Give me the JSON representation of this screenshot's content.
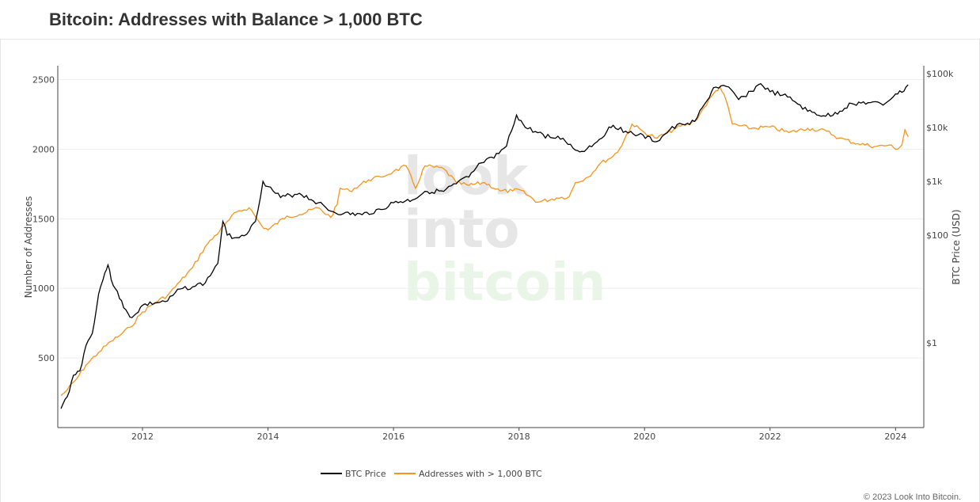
{
  "header": {
    "title": "Bitcoin: Addresses with Balance > 1,000 BTC"
  },
  "watermark": {
    "line1": "look",
    "line2": "into",
    "line3": "bitcoin"
  },
  "footer": {
    "copyright": "© 2023 Look Into Bitcoin."
  },
  "chart_data": {
    "type": "line",
    "title": "Bitcoin: Addresses with Balance > 1,000 BTC",
    "xlabel": "",
    "ylabel": "Number of Addresses",
    "y2label": "BTC Price (USD)",
    "xlim": [
      2010.65,
      2024.45
    ],
    "ylim": [
      0,
      2600
    ],
    "y2_scale": "log",
    "x_ticks": [
      "2012",
      "2014",
      "2016",
      "2018",
      "2020",
      "2022",
      "2024"
    ],
    "y_ticks": [
      "500",
      "1000",
      "1500",
      "2000",
      "2500"
    ],
    "y2_ticks": [
      "$1",
      "$100",
      "$1k",
      "$10k",
      "$100k"
    ],
    "grid": true,
    "legend_position": "bottom-center",
    "colors": {
      "price": "#000000",
      "addresses": "#f7931a",
      "grid": "#eeeeee",
      "watermark_gray": "#e6e6e6",
      "watermark_green": "#e9f6e7"
    },
    "series": [
      {
        "name": "BTC Price",
        "axis": "right",
        "x": [
          2010.7,
          2010.8,
          2010.9,
          2011.0,
          2011.1,
          2011.2,
          2011.3,
          2011.4,
          2011.45,
          2011.5,
          2011.6,
          2011.7,
          2011.8,
          2011.9,
          2012.0,
          2012.2,
          2012.4,
          2012.6,
          2012.8,
          2013.0,
          2013.2,
          2013.28,
          2013.35,
          2013.5,
          2013.7,
          2013.8,
          2013.92,
          2014.0,
          2014.2,
          2014.5,
          2014.8,
          2015.0,
          2015.2,
          2015.5,
          2015.8,
          2016.0,
          2016.3,
          2016.5,
          2016.8,
          2017.0,
          2017.2,
          2017.4,
          2017.6,
          2017.8,
          2017.96,
          2018.1,
          2018.3,
          2018.5,
          2018.7,
          2018.9,
          2019.0,
          2019.2,
          2019.4,
          2019.5,
          2019.7,
          2019.9,
          2020.2,
          2020.4,
          2020.6,
          2020.8,
          2021.0,
          2021.1,
          2021.3,
          2021.5,
          2021.7,
          2021.85,
          2022.0,
          2022.2,
          2022.4,
          2022.6,
          2022.85,
          2023.0,
          2023.3,
          2023.6,
          2023.8,
          2024.0,
          2024.1,
          2024.2
        ],
        "values": [
          0.06,
          0.1,
          0.25,
          0.3,
          0.9,
          1.5,
          8,
          20,
          28,
          15,
          9,
          4.5,
          3,
          3.5,
          5,
          5.5,
          6,
          10,
          11,
          13,
          30,
          180,
          100,
          90,
          120,
          180,
          1000,
          800,
          500,
          600,
          400,
          280,
          250,
          240,
          300,
          400,
          450,
          650,
          650,
          900,
          1200,
          2200,
          2700,
          4500,
          17000,
          10000,
          8000,
          6500,
          6300,
          3800,
          3600,
          5000,
          8500,
          11000,
          8500,
          7300,
          5500,
          9000,
          11500,
          13000,
          32000,
          55000,
          58000,
          33000,
          47000,
          65000,
          46000,
          40000,
          30000,
          20000,
          16500,
          16800,
          28000,
          29000,
          26000,
          42000,
          45000,
          62000
        ]
      },
      {
        "name": "Addresses with > 1,000 BTC",
        "axis": "left",
        "x": [
          2010.7,
          2010.8,
          2010.95,
          2011.1,
          2011.3,
          2011.5,
          2011.6,
          2011.8,
          2012.0,
          2012.2,
          2012.4,
          2012.6,
          2012.8,
          2013.0,
          2013.3,
          2013.5,
          2013.7,
          2013.9,
          2014.0,
          2014.3,
          2014.5,
          2014.8,
          2015.0,
          2015.1,
          2015.15,
          2015.3,
          2015.6,
          2015.8,
          2016.0,
          2016.2,
          2016.35,
          2016.5,
          2016.8,
          2017.0,
          2017.2,
          2017.45,
          2017.7,
          2017.9,
          2018.0,
          2018.3,
          2018.6,
          2018.8,
          2018.9,
          2019.1,
          2019.3,
          2019.5,
          2019.6,
          2019.8,
          2020.0,
          2020.2,
          2020.5,
          2020.8,
          2020.95,
          2021.1,
          2021.2,
          2021.3,
          2021.4,
          2021.7,
          2022.0,
          2022.3,
          2022.6,
          2022.9,
          2023.1,
          2023.4,
          2023.7,
          2023.9,
          2024.0,
          2024.1,
          2024.15,
          2024.2
        ],
        "values": [
          230,
          270,
          350,
          450,
          540,
          620,
          650,
          720,
          830,
          900,
          950,
          1050,
          1150,
          1300,
          1450,
          1550,
          1580,
          1450,
          1420,
          1520,
          1530,
          1580,
          1510,
          1600,
          1720,
          1700,
          1780,
          1800,
          1840,
          1880,
          1720,
          1880,
          1860,
          1760,
          1740,
          1760,
          1700,
          1700,
          1710,
          1620,
          1650,
          1660,
          1760,
          1800,
          1900,
          1950,
          2000,
          2180,
          2120,
          2080,
          2150,
          2200,
          2300,
          2400,
          2450,
          2350,
          2180,
          2150,
          2160,
          2120,
          2150,
          2130,
          2080,
          2040,
          2020,
          2030,
          2000,
          2030,
          2140,
          2090
        ]
      }
    ]
  }
}
